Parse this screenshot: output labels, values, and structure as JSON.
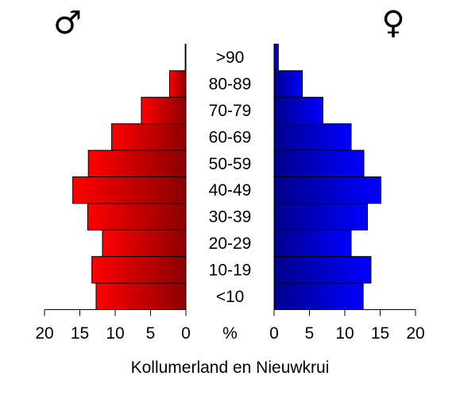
{
  "chart_data": {
    "type": "bar",
    "subtype": "population-pyramid",
    "title": "Kollumerland en Nieuwkrui",
    "center_label": "%",
    "categories": [
      ">90",
      "80-89",
      "70-79",
      "60-69",
      "50-59",
      "40-49",
      "30-39",
      "20-29",
      "10-19",
      "<10"
    ],
    "series": [
      {
        "name": "♂",
        "side": "left",
        "values": [
          0.1,
          2.3,
          6.3,
          10.5,
          13.8,
          16.0,
          13.9,
          11.8,
          13.3,
          12.7
        ],
        "colors": {
          "outer": "#ff0000",
          "inner": "#8b0000"
        }
      },
      {
        "name": "♀",
        "side": "right",
        "values": [
          0.6,
          4.0,
          6.9,
          10.9,
          12.7,
          15.1,
          13.2,
          10.9,
          13.7,
          12.6
        ],
        "colors": {
          "inner": "#00008b",
          "outer": "#0000ff"
        }
      }
    ],
    "xlim": [
      0,
      20
    ],
    "ticks": [
      "20",
      "15",
      "10",
      "5",
      "0",
      "0",
      "5",
      "10",
      "15",
      "20"
    ],
    "grid": false,
    "legend": "none"
  }
}
